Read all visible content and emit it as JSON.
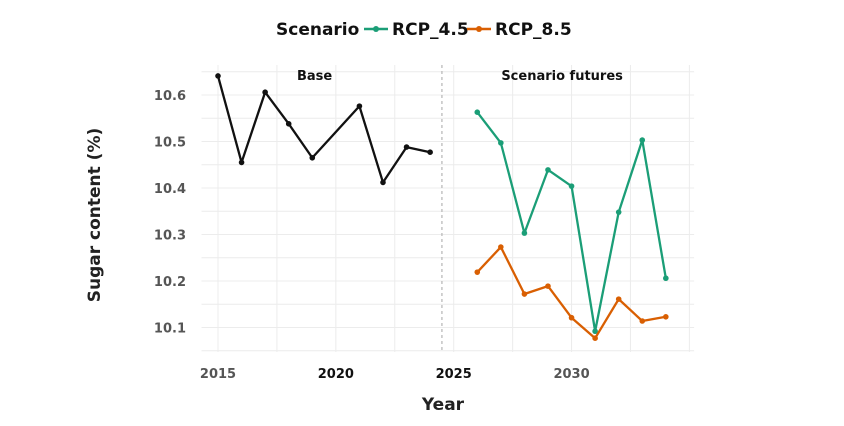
{
  "chart_data": {
    "type": "line",
    "xlabel": "Year",
    "ylabel": "Sugar content (%)",
    "xlim": [
      2014.3,
      2035.2
    ],
    "ylim": [
      10.05,
      10.67
    ],
    "x_ticks": [
      2015,
      2020,
      2025,
      2030
    ],
    "y_ticks": [
      10.1,
      10.2,
      10.3,
      10.4,
      10.5,
      10.6
    ],
    "grid": true,
    "legend": {
      "title": "Scenario",
      "placement": "top",
      "entries": [
        "RCP_4.5",
        "RCP_8.5"
      ]
    },
    "annotations": {
      "left_panel": "Base",
      "right_panel": "Scenario futures",
      "divider_x": 2024.5
    },
    "series": [
      {
        "key": "base",
        "color": "#111111",
        "x": [
          2015,
          2016,
          2017,
          2018,
          2019,
          2021,
          2022,
          2023,
          2024
        ],
        "y": [
          10.641,
          10.455,
          10.606,
          10.538,
          10.465,
          10.576,
          10.412,
          10.488,
          10.477
        ]
      },
      {
        "name": "RCP_4.5",
        "color": "#1b9e77",
        "x": [
          2026,
          2027,
          2028,
          2029,
          2030,
          2031,
          2032,
          2033,
          2034
        ],
        "y": [
          10.563,
          10.497,
          10.303,
          10.439,
          10.404,
          10.092,
          10.348,
          10.503,
          10.206
        ]
      },
      {
        "name": "RCP_8.5",
        "color": "#d95f02",
        "x": [
          2026,
          2027,
          2028,
          2029,
          2030,
          2031,
          2032,
          2033,
          2034
        ],
        "y": [
          10.219,
          10.273,
          10.172,
          10.189,
          10.121,
          10.077,
          10.161,
          10.114,
          10.123
        ]
      }
    ]
  }
}
